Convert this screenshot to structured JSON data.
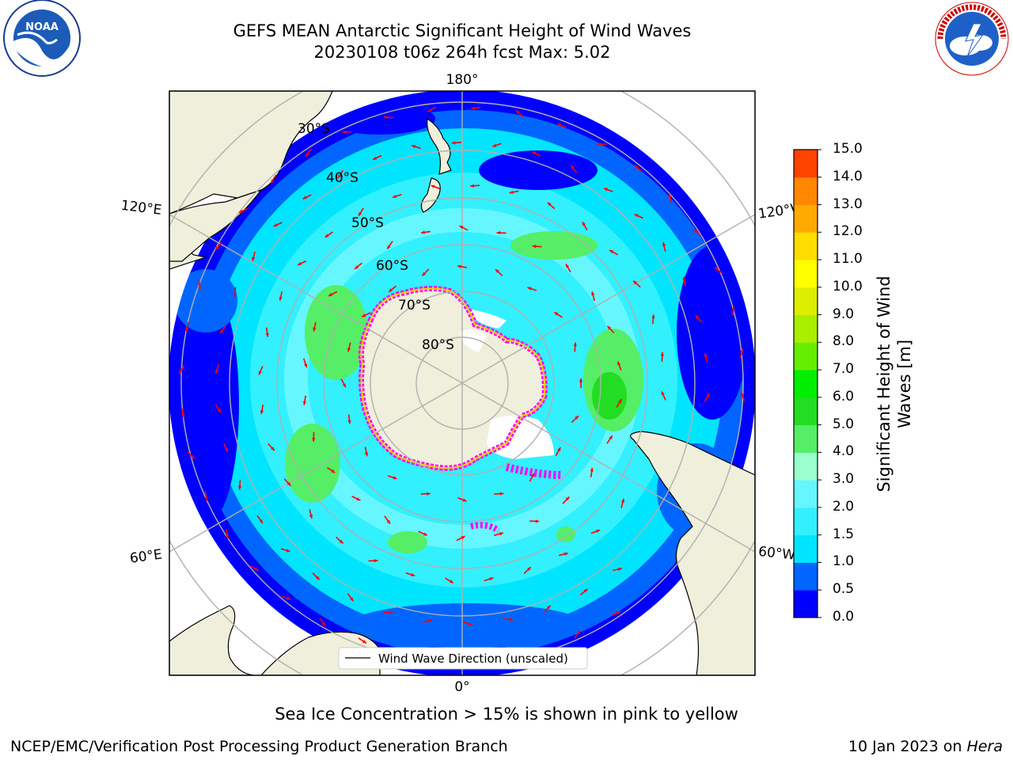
{
  "header": {
    "title_line1": "GEFS MEAN Antarctic Significant Height of Wind Waves",
    "title_line2": "20230108 t06z 264h fcst   Max: 5.02"
  },
  "map": {
    "longitude_labels": {
      "top": "180°",
      "bottom": "0°",
      "left_upper": "120°E",
      "left_lower": "60°E",
      "right_upper": "120°W",
      "right_lower": "60°W"
    },
    "latitude_labels": [
      "30°S",
      "40°S",
      "50°S",
      "60°S",
      "70°S",
      "80°S"
    ],
    "legend_label": "Wind Wave Direction (unscaled)",
    "arrow_color": "#ff0000",
    "land_color": "#efefdc",
    "ice_colors": [
      "#ff00ff",
      "#ff66cc",
      "#ffcc00"
    ]
  },
  "colorbar": {
    "title_line1": "Significant Height of Wind",
    "title_line2": "Waves [m]",
    "ticks": [
      "0.0",
      "0.5",
      "1.0",
      "1.5",
      "2.0",
      "3.0",
      "4.0",
      "5.0",
      "6.0",
      "7.0",
      "8.0",
      "9.0",
      "10.0",
      "11.0",
      "12.0",
      "13.0",
      "14.0",
      "15.0"
    ],
    "colors": [
      "#0000ff",
      "#0066ff",
      "#00e5ff",
      "#33f0ff",
      "#66f6ff",
      "#99ffcc",
      "#55ee66",
      "#22dd22",
      "#00ee00",
      "#66ee00",
      "#aaee00",
      "#ddee00",
      "#ffff00",
      "#ffdd00",
      "#ffaa00",
      "#ff8800",
      "#ff4400"
    ]
  },
  "footer": {
    "ice_note": "Sea Ice Concentration > 15% is shown in pink to yellow",
    "credit": "NCEP/EMC/Verification Post Processing Product Generation Branch",
    "date_prefix": "10 Jan 2023 on ",
    "machine": "Hera"
  },
  "logos": {
    "left_text": "NOAA",
    "right_text": "NATIONAL WEATHER SERVICE"
  }
}
